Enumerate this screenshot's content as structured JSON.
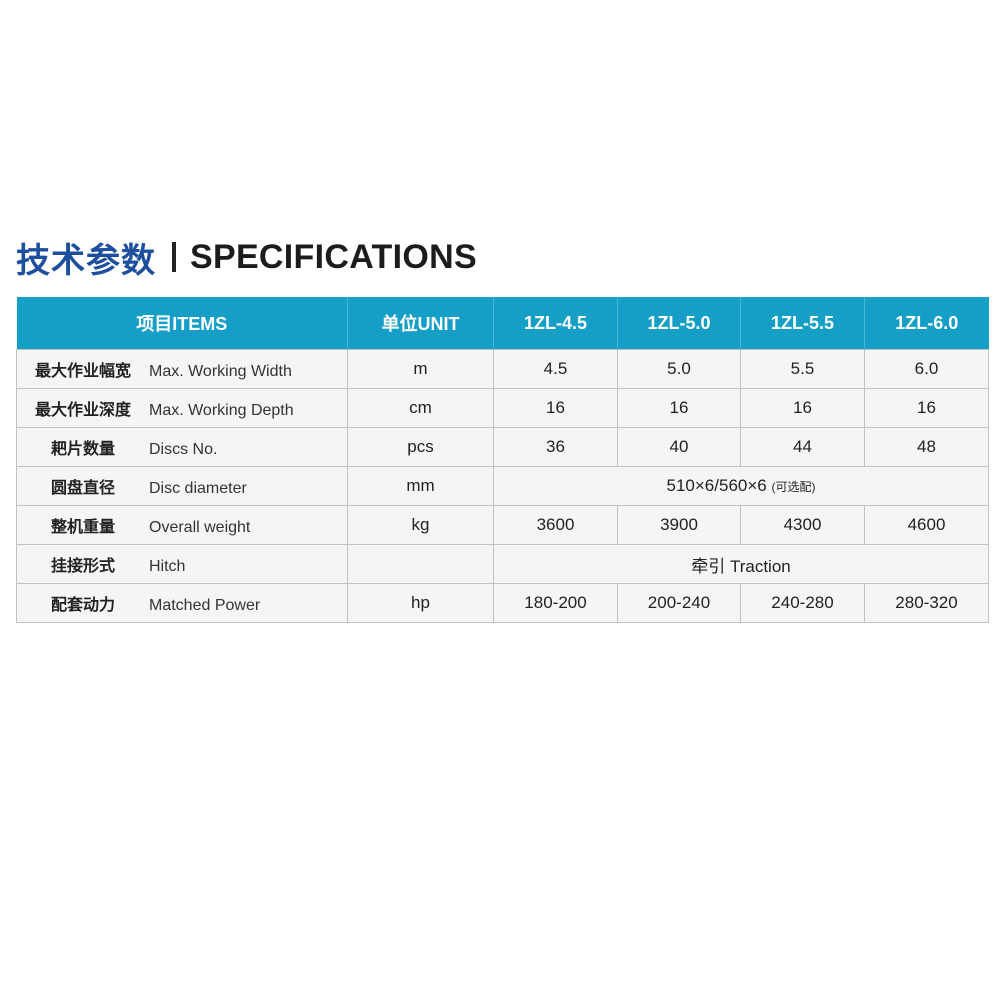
{
  "title": {
    "cn": "技术参数",
    "en": "SPECIFICATIONS"
  },
  "colors": {
    "header_bg": "#159fc7",
    "title_cn": "#1d4f9e",
    "row_bg": "#f5f5f5"
  },
  "table": {
    "headers": [
      "项目ITEMS",
      "单位UNIT",
      "1ZL-4.5",
      "1ZL-5.0",
      "1ZL-5.5",
      "1ZL-6.0"
    ],
    "rows": [
      {
        "cn": "最大作业幅宽",
        "en": "Max. Working Width",
        "unit": "m",
        "values": [
          "4.5",
          "5.0",
          "5.5",
          "6.0"
        ]
      },
      {
        "cn": "最大作业深度",
        "en": "Max. Working Depth",
        "unit": "cm",
        "values": [
          "16",
          "16",
          "16",
          "16"
        ]
      },
      {
        "cn": "耙片数量",
        "en": "Discs No.",
        "unit": "pcs",
        "values": [
          "36",
          "40",
          "44",
          "48"
        ]
      },
      {
        "cn": "圆盘直径",
        "en": "Disc diameter",
        "unit": "mm",
        "merged": "510×6/560×6",
        "merged_note": "(可选配)"
      },
      {
        "cn": "整机重量",
        "en": "Overall weight",
        "unit": "kg",
        "values": [
          "3600",
          "3900",
          "4300",
          "4600"
        ]
      },
      {
        "cn": "挂接形式",
        "en": "Hitch",
        "unit": "",
        "merged": "牵引 Traction"
      },
      {
        "cn": "配套动力",
        "en": "Matched Power",
        "unit": "hp",
        "values": [
          "180-200",
          "200-240",
          "240-280",
          "280-320"
        ]
      }
    ]
  }
}
